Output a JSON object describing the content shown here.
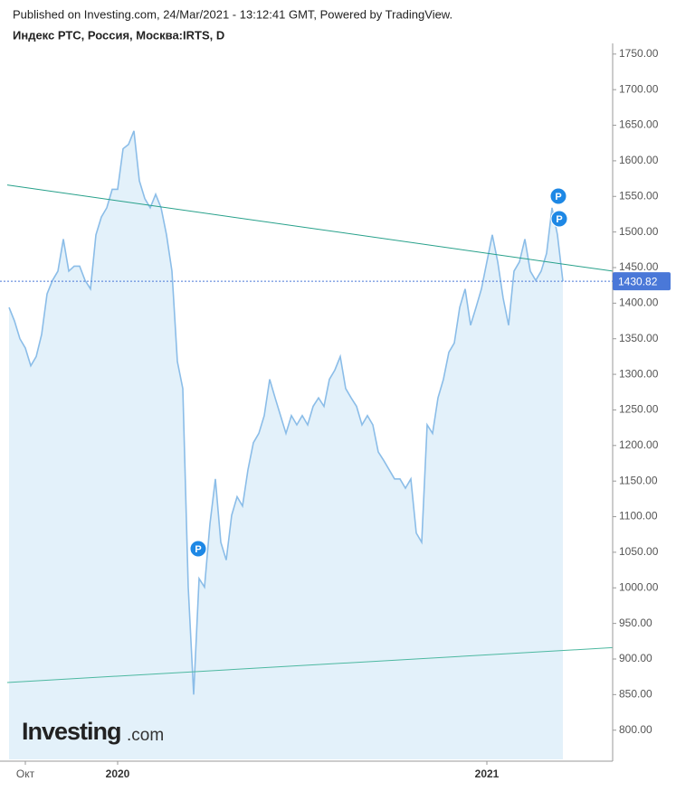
{
  "header": {
    "published": "Published on Investing.com, 24/Mar/2021 - 13:12:41 GMT, Powered by TradingView.",
    "symbol": "Индекс РТС, Россия, Москва:IRTS, D"
  },
  "watermark": {
    "brand": "Investing",
    "suffix": ".com"
  },
  "event_marker_label": "P",
  "chart_data": {
    "type": "area",
    "color": "#8bbde8",
    "fill": "#e3f1fa",
    "categories": [
      null,
      null,
      null,
      "Окт",
      null,
      null,
      null,
      null,
      null,
      null,
      null,
      null,
      null,
      null,
      null,
      null,
      null,
      null,
      null,
      null,
      "2020",
      null,
      null,
      null,
      null,
      null,
      null,
      null,
      null,
      null,
      null,
      null,
      null,
      null,
      null,
      null,
      null,
      null,
      null,
      null,
      null,
      null,
      null,
      null,
      null,
      null,
      null,
      null,
      null,
      null,
      null,
      null,
      null,
      null,
      null,
      null,
      null,
      null,
      null,
      null,
      null,
      null,
      null,
      null,
      null,
      null,
      null,
      null,
      null,
      null,
      null,
      null,
      null,
      null,
      null,
      null,
      null,
      null,
      null,
      null,
      null,
      null,
      null,
      null,
      null,
      null,
      null,
      null,
      "2021",
      null,
      null,
      null,
      null,
      null,
      null,
      null,
      null,
      null,
      null,
      null,
      null,
      null,
      null
    ],
    "values": [
      1394,
      1375,
      1350,
      1337,
      1312,
      1325,
      1356,
      1413,
      1432,
      1445,
      1490,
      1445,
      1452,
      1452,
      1432,
      1420,
      1496,
      1521,
      1534,
      1560,
      1560,
      1617,
      1623,
      1642,
      1572,
      1547,
      1534,
      1553,
      1534,
      1496,
      1445,
      1318,
      1280,
      1001,
      850,
      1013,
      1001,
      1090,
      1153,
      1064,
      1039,
      1102,
      1128,
      1115,
      1166,
      1204,
      1217,
      1242,
      1293,
      1267,
      1242,
      1217,
      1242,
      1229,
      1242,
      1229,
      1255,
      1267,
      1255,
      1293,
      1306,
      1325,
      1280,
      1267,
      1255,
      1229,
      1242,
      1229,
      1191,
      1179,
      1166,
      1153,
      1153,
      1140,
      1153,
      1077,
      1064,
      1229,
      1217,
      1267,
      1293,
      1331,
      1344,
      1394,
      1420,
      1369,
      1394,
      1420,
      1458,
      1496,
      1458,
      1407,
      1369,
      1445,
      1458,
      1490,
      1445,
      1432,
      1445,
      1470,
      1534,
      1496,
      1430.82
    ],
    "ylim": [
      759,
      1765
    ],
    "yticks": [
      {
        "value": 800,
        "label": "800.00"
      },
      {
        "value": 850,
        "label": "850.00"
      },
      {
        "value": 900,
        "label": "900.00"
      },
      {
        "value": 950,
        "label": "950.00"
      },
      {
        "value": 1000,
        "label": "1000.00"
      },
      {
        "value": 1050,
        "label": "1050.00"
      },
      {
        "value": 1100,
        "label": "1100.00"
      },
      {
        "value": 1150,
        "label": "1150.00"
      },
      {
        "value": 1200,
        "label": "1200.00"
      },
      {
        "value": 1250,
        "label": "1250.00"
      },
      {
        "value": 1300,
        "label": "1300.00"
      },
      {
        "value": 1350,
        "label": "1350.00"
      },
      {
        "value": 1400,
        "label": "1400.00"
      },
      {
        "value": 1450,
        "label": "1450.00"
      },
      {
        "value": 1500,
        "label": "1500.00"
      },
      {
        "value": 1550,
        "label": "1550.00"
      },
      {
        "value": 1600,
        "label": "1600.00"
      },
      {
        "value": 1650,
        "label": "1650.00"
      },
      {
        "value": 1700,
        "label": "1700.00"
      },
      {
        "value": 1750,
        "label": "1750.00"
      }
    ],
    "last_price_color": "#4a78d8",
    "trendlines": [
      {
        "start": 1566,
        "end": 1445,
        "color": "#26a08a"
      },
      {
        "start": 867,
        "end": 916,
        "color": "#4cb8a0"
      }
    ]
  }
}
